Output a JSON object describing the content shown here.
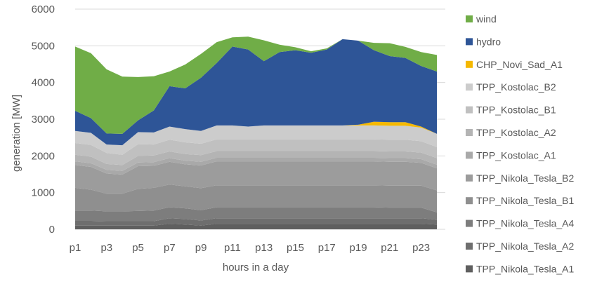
{
  "chart_data": {
    "type": "area",
    "stacked": true,
    "xlabel": "hours in a day",
    "ylabel": "generation [MW]",
    "ylim": [
      0,
      6000
    ],
    "yticks": [
      0,
      1000,
      2000,
      3000,
      4000,
      5000,
      6000
    ],
    "x": [
      "p1",
      "p2",
      "p3",
      "p4",
      "p5",
      "p6",
      "p7",
      "p8",
      "p9",
      "p10",
      "p11",
      "p12",
      "p13",
      "p14",
      "p15",
      "p16",
      "p17",
      "p18",
      "p19",
      "p20",
      "p21",
      "p22",
      "p23",
      "p24"
    ],
    "xtick_labels": [
      "p1",
      "p3",
      "p5",
      "p7",
      "p9",
      "p11",
      "p13",
      "p15",
      "p17",
      "p19",
      "p21",
      "p23"
    ],
    "grid": "horizontal",
    "legend_position": "right",
    "series": [
      {
        "name": "TPP_Nikola_Tesla_A1",
        "color": "#5f5f5f",
        "values": [
          100,
          100,
          100,
          100,
          100,
          100,
          150,
          130,
          100,
          150,
          150,
          150,
          150,
          150,
          150,
          150,
          150,
          150,
          150,
          150,
          150,
          150,
          150,
          130
        ]
      },
      {
        "name": "TPP_Nikola_Tesla_A2",
        "color": "#6e6e6e",
        "values": [
          130,
          130,
          120,
          120,
          120,
          120,
          150,
          150,
          140,
          150,
          150,
          150,
          150,
          150,
          150,
          150,
          150,
          150,
          150,
          150,
          150,
          150,
          150,
          130
        ]
      },
      {
        "name": "TPP_Nikola_Tesla_A4",
        "color": "#7d7d7d",
        "values": [
          280,
          280,
          270,
          270,
          280,
          290,
          300,
          290,
          280,
          300,
          300,
          300,
          300,
          300,
          300,
          300,
          300,
          300,
          300,
          300,
          290,
          290,
          290,
          200
        ]
      },
      {
        "name": "TPP_Nikola_Tesla_B1",
        "color": "#8f8f8f",
        "values": [
          620,
          570,
          480,
          480,
          600,
          620,
          620,
          600,
          600,
          600,
          600,
          600,
          600,
          600,
          600,
          600,
          600,
          600,
          600,
          600,
          600,
          600,
          600,
          600
        ]
      },
      {
        "name": "TPP_Nikola_Tesla_B2",
        "color": "#9c9c9c",
        "values": [
          620,
          620,
          550,
          520,
          620,
          600,
          620,
          600,
          620,
          650,
          650,
          650,
          650,
          650,
          650,
          650,
          650,
          650,
          650,
          650,
          650,
          650,
          620,
          600
        ]
      },
      {
        "name": "TPP_Kostolac_A1",
        "color": "#a9a9a9",
        "values": [
          100,
          100,
          100,
          100,
          100,
          100,
          100,
          100,
          100,
          100,
          100,
          100,
          100,
          100,
          100,
          100,
          100,
          100,
          100,
          100,
          100,
          100,
          100,
          100
        ]
      },
      {
        "name": "TPP_Kostolac_A2",
        "color": "#b4b4b4",
        "values": [
          180,
          180,
          160,
          160,
          180,
          180,
          180,
          180,
          180,
          180,
          180,
          180,
          180,
          180,
          180,
          180,
          180,
          180,
          180,
          180,
          180,
          180,
          180,
          180
        ]
      },
      {
        "name": "TPP_Kostolac_B1",
        "color": "#c0c0c0",
        "values": [
          320,
          320,
          300,
          280,
          320,
          300,
          320,
          320,
          310,
          320,
          320,
          320,
          320,
          320,
          320,
          320,
          320,
          320,
          320,
          320,
          320,
          320,
          310,
          300
        ]
      },
      {
        "name": "TPP_Kostolac_B2",
        "color": "#cccccc",
        "values": [
          330,
          330,
          230,
          260,
          330,
          330,
          360,
          360,
          350,
          380,
          380,
          350,
          380,
          380,
          380,
          380,
          380,
          380,
          380,
          380,
          380,
          380,
          370,
          360
        ]
      },
      {
        "name": "CHP_Novi_Sad_A1",
        "color": "#f5b800",
        "values": [
          0,
          0,
          0,
          0,
          0,
          0,
          0,
          0,
          0,
          0,
          0,
          0,
          0,
          0,
          0,
          0,
          0,
          0,
          20,
          100,
          100,
          100,
          30,
          0
        ]
      },
      {
        "name": "hydro",
        "color": "#2e5597",
        "values": [
          550,
          400,
          300,
          310,
          320,
          600,
          1100,
          1110,
          1450,
          1700,
          2150,
          2100,
          1750,
          2000,
          2050,
          1980,
          2070,
          2350,
          2290,
          1950,
          1800,
          1750,
          1650,
          1700
        ]
      },
      {
        "name": "wind",
        "color": "#70ad47",
        "values": [
          1750,
          1770,
          1750,
          1560,
          1180,
          930,
          400,
          650,
          650,
          570,
          250,
          350,
          570,
          200,
          80,
          40,
          30,
          0,
          0,
          200,
          350,
          300,
          380,
          450
        ]
      }
    ]
  }
}
